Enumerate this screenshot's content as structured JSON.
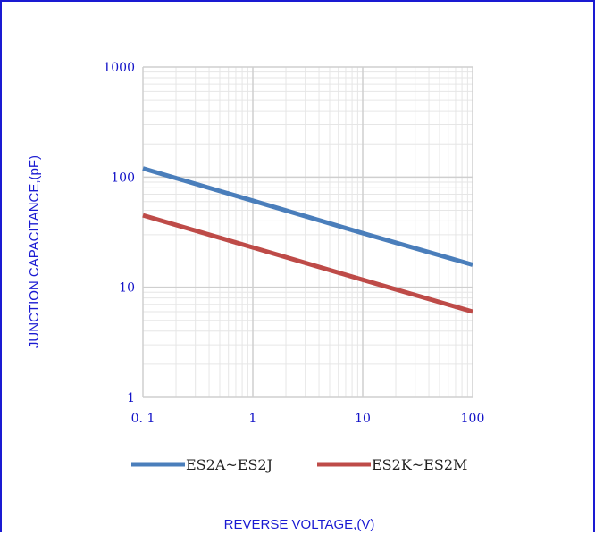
{
  "chart_data": {
    "type": "line",
    "xscale": "log",
    "yscale": "log",
    "xlim": [
      0.1,
      100
    ],
    "ylim": [
      1,
      1000
    ],
    "xticks": [
      "0. 1",
      "1",
      "10",
      "100"
    ],
    "yticks": [
      "1",
      "10",
      "100",
      "1000"
    ],
    "xlabel": "REVERSE VOLTAGE,(V)",
    "ylabel": "JUNCTION CAPACITANCE,(pF)",
    "grid": true,
    "legend_position": "bottom",
    "series": [
      {
        "name": "ES2A~ES2J",
        "color": "#4a7ebb",
        "x": [
          0.1,
          1,
          10,
          100
        ],
        "y": [
          120,
          61,
          31,
          16
        ]
      },
      {
        "name": "ES2K~ES2M",
        "color": "#be4b48",
        "x": [
          0.1,
          1,
          10,
          100
        ],
        "y": [
          45,
          23,
          11.7,
          6
        ]
      }
    ]
  }
}
